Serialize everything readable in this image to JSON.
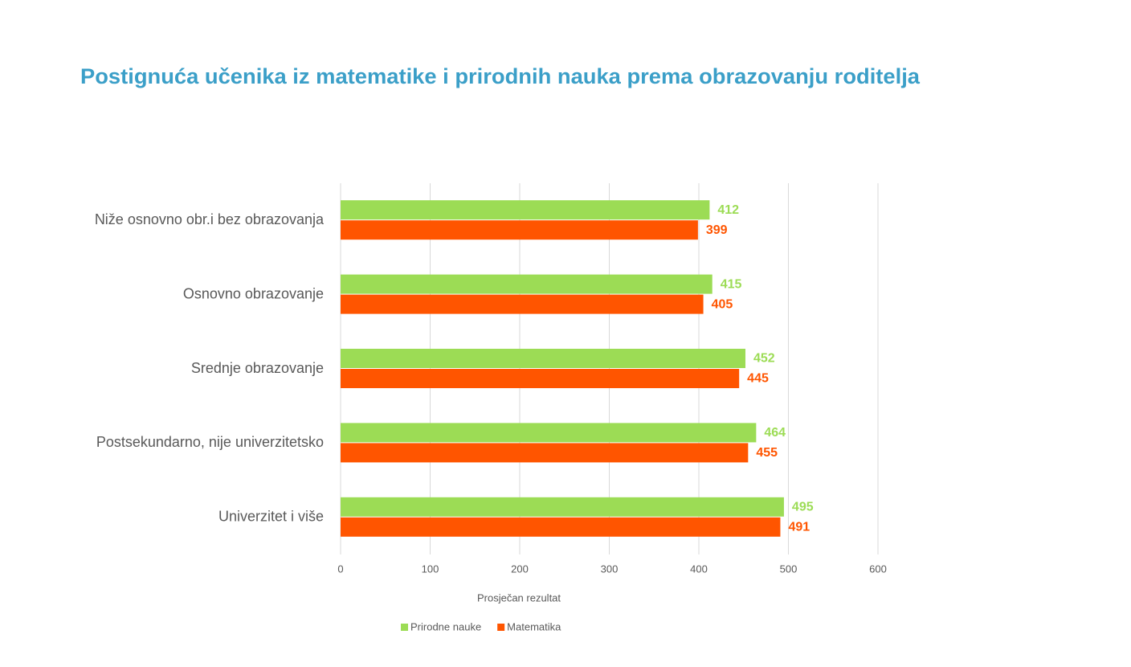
{
  "chart_data": {
    "type": "hbar",
    "title": "Postignuća učenika iz matematike i prirodnih nauka prema obrazovanju roditelja",
    "categories": [
      "Niže osnovno obr.i bez obrazovanja",
      "Osnovno obrazovanje",
      "Srednje obrazovanje",
      "Postsekundarno, nije univerzitetsko",
      "Univerzitet i više"
    ],
    "series": [
      {
        "name": "Prirodne nauke",
        "color": "#9cdc55",
        "values": [
          412,
          415,
          452,
          464,
          495
        ]
      },
      {
        "name": "Matematika",
        "color": "#ff5500",
        "values": [
          399,
          405,
          445,
          455,
          491
        ]
      }
    ],
    "xlabel": "Prosječan rezultat",
    "xlim": [
      0,
      600
    ],
    "xticks": [
      0,
      100,
      200,
      300,
      400,
      500,
      600
    ],
    "grid": true,
    "legend": "bottom"
  }
}
